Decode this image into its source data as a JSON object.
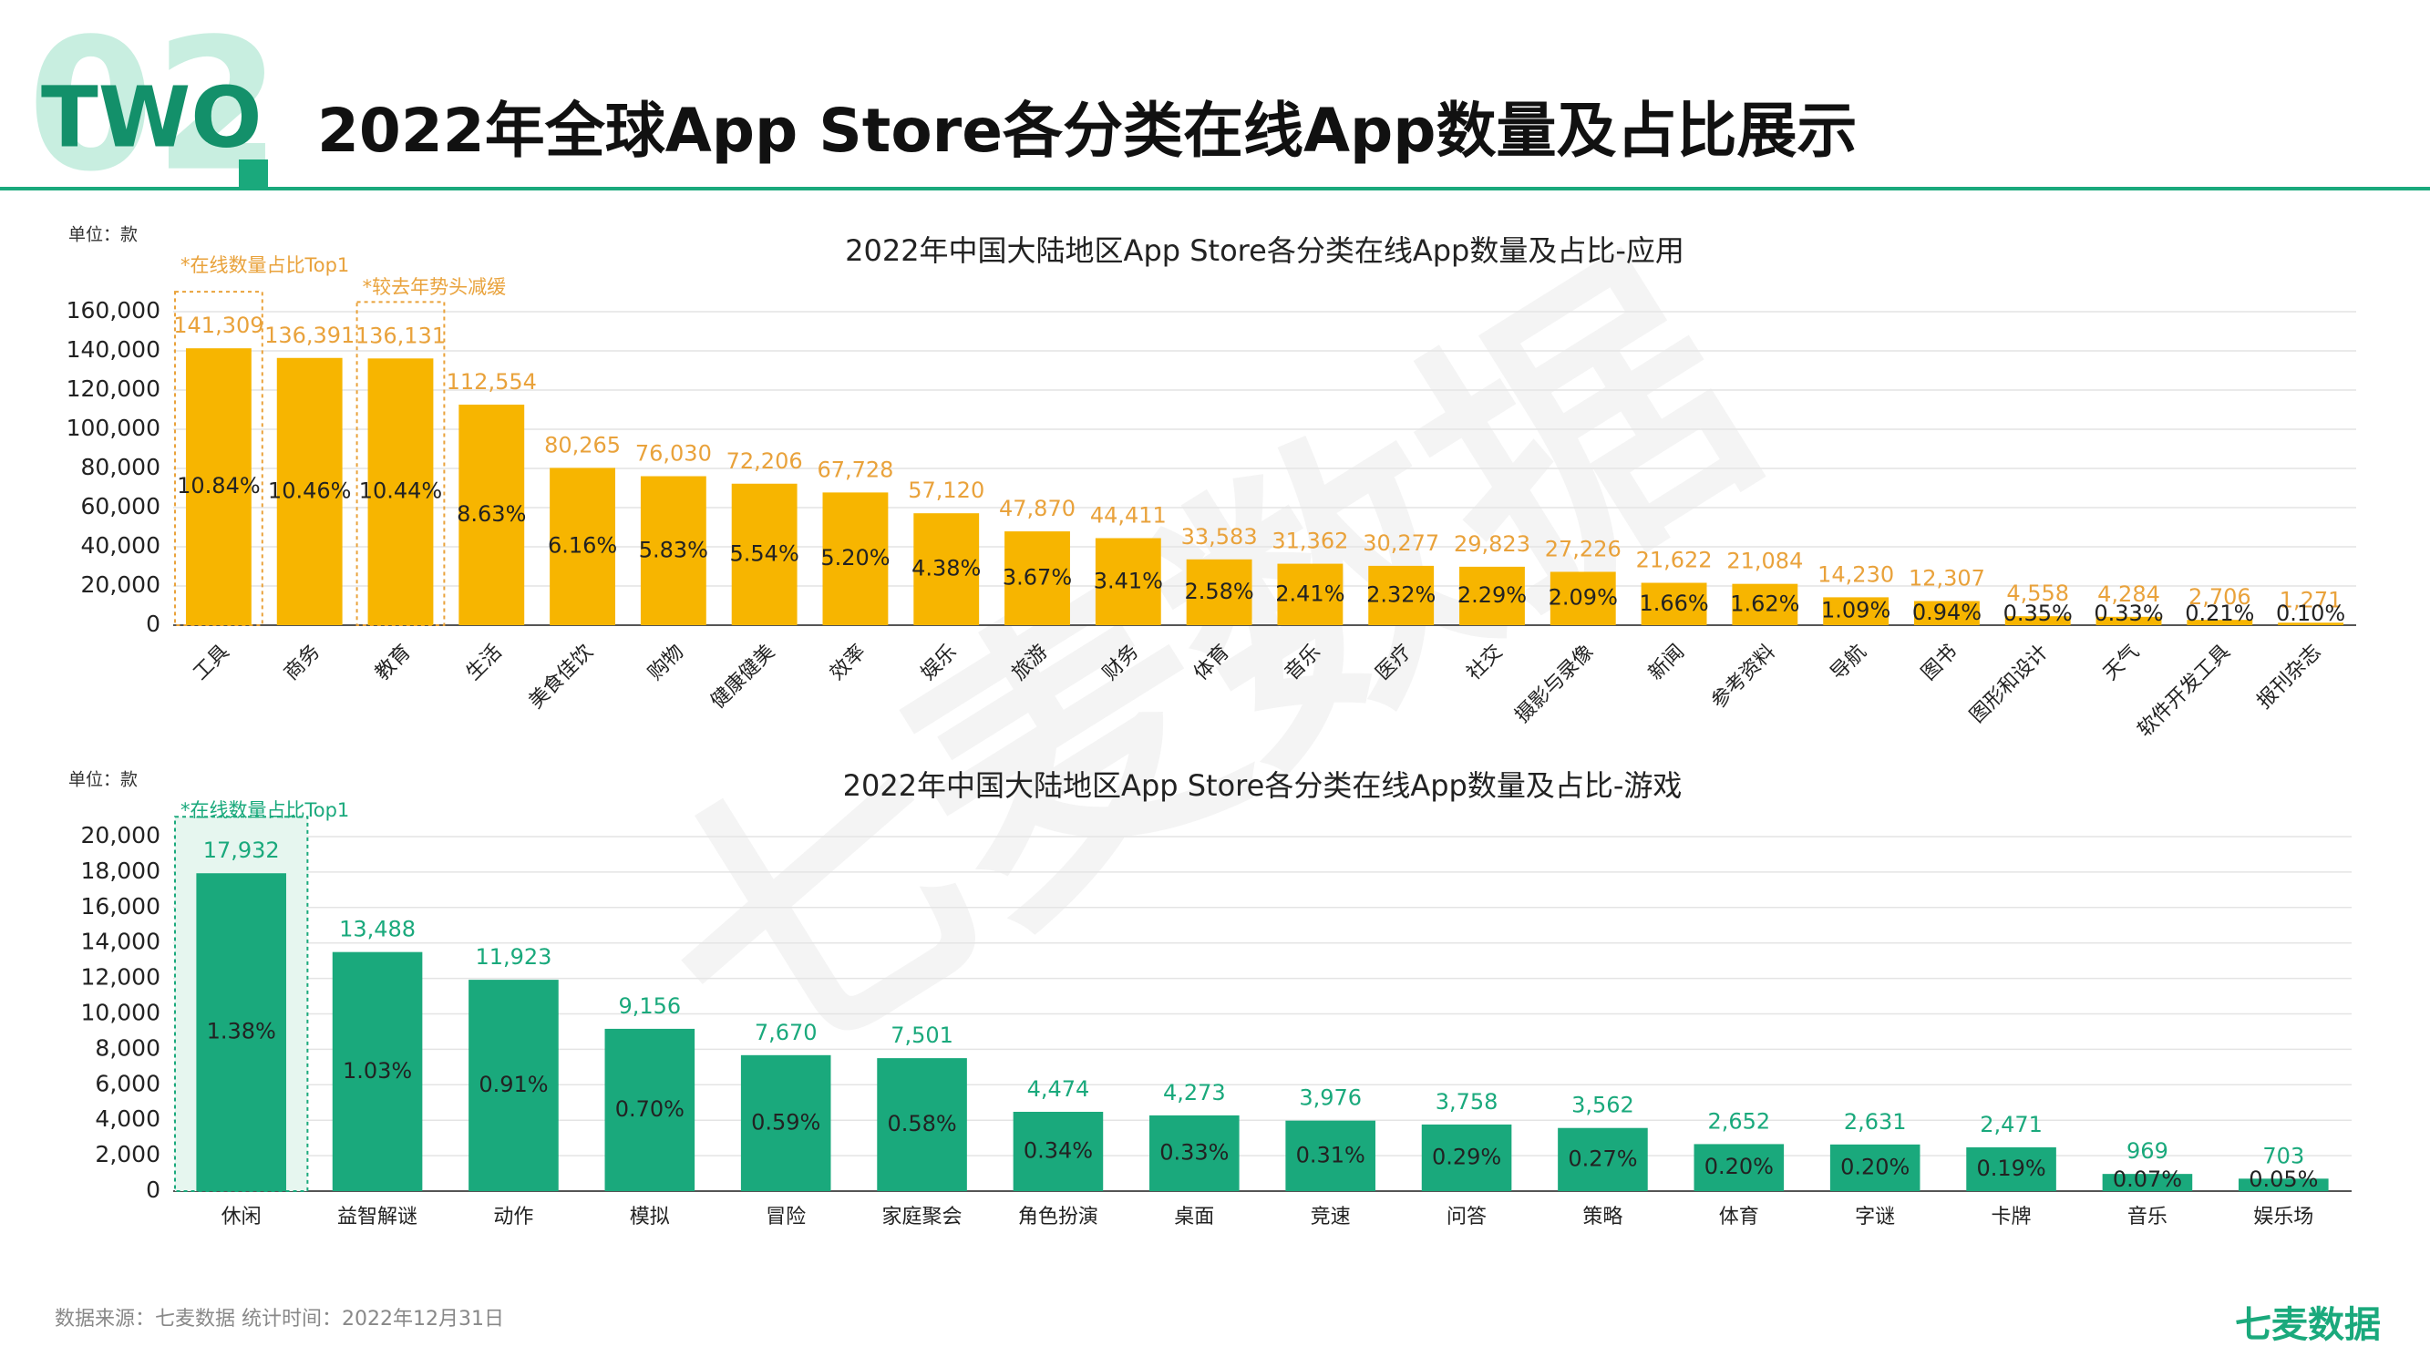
{
  "header": {
    "badge_number": "02",
    "badge": "TWO",
    "title": "2022年全球App Store各分类在线App数量及占比展示"
  },
  "watermark": "七麦数据",
  "chart_data": [
    {
      "type": "bar",
      "title": "2022年中国大陆地区App Store各分类在线App数量及占比-应用",
      "unit": "单位：款",
      "annotations": [
        "*在线数量占比Top1",
        "*较去年势头减缓"
      ],
      "categories": [
        "工具",
        "商务",
        "教育",
        "生活",
        "美食佳饮",
        "购物",
        "健康健美",
        "效率",
        "娱乐",
        "旅游",
        "财务",
        "体育",
        "音乐",
        "医疗",
        "社交",
        "摄影与录像",
        "新闻",
        "参考资料",
        "导航",
        "图书",
        "图形和设计",
        "天气",
        "软件开发工具",
        "报刊杂志"
      ],
      "values": [
        141309,
        136391,
        136131,
        112554,
        80265,
        76030,
        72206,
        67728,
        57120,
        47870,
        44411,
        33583,
        31362,
        30277,
        29823,
        27226,
        21622,
        21084,
        14230,
        12307,
        4558,
        4284,
        2706,
        1271
      ],
      "value_labels": [
        "141,309",
        "136,391",
        "136,131",
        "112,554",
        "80,265",
        "76,030",
        "72,206",
        "67,728",
        "57,120",
        "47,870",
        "44,411",
        "33,583",
        "31,362",
        "30,277",
        "29,823",
        "27,226",
        "21,622",
        "21,084",
        "14,230",
        "12,307",
        "4,558",
        "4,284",
        "2,706",
        "1,271"
      ],
      "shares": [
        10.84,
        10.46,
        10.44,
        8.63,
        6.16,
        5.83,
        5.54,
        5.2,
        4.38,
        3.67,
        3.41,
        2.58,
        2.41,
        2.32,
        2.29,
        2.09,
        1.66,
        1.62,
        1.09,
        0.94,
        0.35,
        0.33,
        0.21,
        0.1
      ],
      "share_labels": [
        "10.84%",
        "10.46%",
        "10.44%",
        "8.63%",
        "6.16%",
        "5.83%",
        "5.54%",
        "5.20%",
        "4.38%",
        "3.67%",
        "3.41%",
        "2.58%",
        "2.41%",
        "2.32%",
        "2.29%",
        "2.09%",
        "1.66%",
        "1.62%",
        "1.09%",
        "0.94%",
        "0.35%",
        "0.33%",
        "0.21%",
        "0.10%"
      ],
      "color": "#f7b500",
      "label_color": "#e9a23b",
      "ylim": [
        0,
        160000
      ],
      "yticks": [
        0,
        {
          "value": 20000,
          "label": "20,000"
        },
        {
          "value": 40000,
          "label": "40,000"
        },
        {
          "value": 60000,
          "label": "60,000"
        },
        {
          "value": 80000,
          "label": "80,000"
        },
        {
          "value": 100000,
          "label": "100,000"
        },
        {
          "value": 120000,
          "label": "120,000"
        },
        {
          "value": 140000,
          "label": "140,000"
        },
        {
          "value": 160000,
          "label": "160,000"
        }
      ],
      "grid": true
    },
    {
      "type": "bar",
      "title": "2022年中国大陆地区App Store各分类在线App数量及占比-游戏",
      "unit": "单位：款",
      "annotations": [
        "*在线数量占比Top1"
      ],
      "categories": [
        "休闲",
        "益智解谜",
        "动作",
        "模拟",
        "冒险",
        "家庭聚会",
        "角色扮演",
        "桌面",
        "竞速",
        "问答",
        "策略",
        "体育",
        "字谜",
        "卡牌",
        "音乐",
        "娱乐场"
      ],
      "values": [
        17932,
        13488,
        11923,
        9156,
        7670,
        7501,
        4474,
        4273,
        3976,
        3758,
        3562,
        2652,
        2631,
        2471,
        969,
        703
      ],
      "value_labels": [
        "17,932",
        "13,488",
        "11,923",
        "9,156",
        "7,670",
        "7,501",
        "4,474",
        "4,273",
        "3,976",
        "3,758",
        "3,562",
        "2,652",
        "2,631",
        "2,471",
        "969",
        "703"
      ],
      "shares": [
        1.38,
        1.03,
        0.91,
        0.7,
        0.59,
        0.58,
        0.34,
        0.33,
        0.31,
        0.29,
        0.27,
        0.2,
        0.2,
        0.19,
        0.07,
        0.05
      ],
      "share_labels": [
        "1.38%",
        "1.03%",
        "0.91%",
        "0.70%",
        "0.59%",
        "0.58%",
        "0.34%",
        "0.33%",
        "0.31%",
        "0.29%",
        "0.27%",
        "0.20%",
        "0.20%",
        "0.19%",
        "0.07%",
        "0.05%"
      ],
      "color": "#1aa97c",
      "label_color": "#1aa97c",
      "ylim": [
        0,
        20000
      ],
      "yticks": [
        0,
        {
          "value": 2000,
          "label": "2,000"
        },
        {
          "value": 4000,
          "label": "4,000"
        },
        {
          "value": 6000,
          "label": "6,000"
        },
        {
          "value": 8000,
          "label": "8,000"
        },
        {
          "value": 10000,
          "label": "10,000"
        },
        {
          "value": 12000,
          "label": "12,000"
        },
        {
          "value": 14000,
          "label": "14,000"
        },
        {
          "value": 16000,
          "label": "16,000"
        },
        {
          "value": 18000,
          "label": "18,000"
        },
        {
          "value": 20000,
          "label": "20,000"
        }
      ],
      "grid": true
    }
  ],
  "footer": {
    "source": "数据来源：七麦数据  统计时间：2022年12月31日",
    "brand": "七麦数据"
  }
}
